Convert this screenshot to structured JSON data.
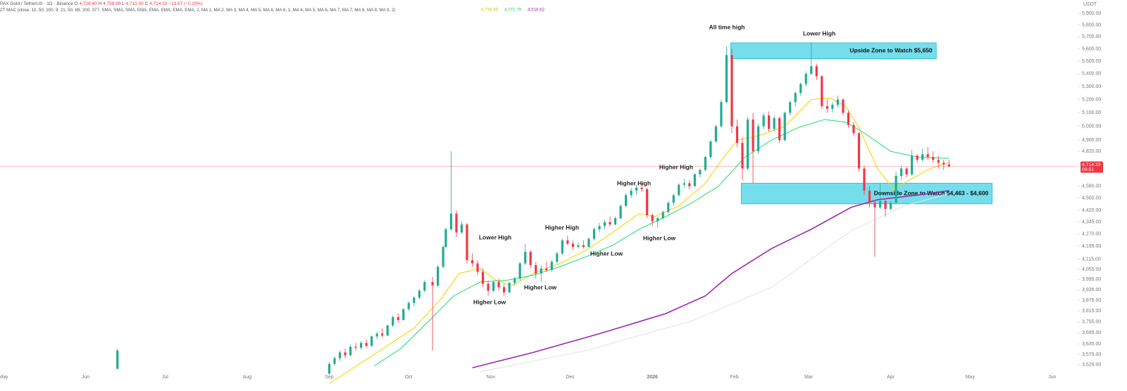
{
  "chart_data": {
    "type": "candlestick",
    "header": {
      "symbol": "PAX Gold / TetherUS · 1D · Binance",
      "ohlc": [
        {
          "key": "O",
          "value": "4,728.60"
        },
        {
          "key": "H",
          "value": "4,758.99"
        },
        {
          "key": "L",
          "value": "4,710.00"
        },
        {
          "key": "C",
          "value": "4,714.33"
        }
      ],
      "change": "−13.67 (−0.29%)",
      "indicator": "ZT MAC (close, 10, 50, 200, 9, 21, 50, 89, 200, 377, SMA, SMA, SMA, EMA, EMA, EMA, EMA, EMA, 2, MA 1, MA 2, MA 3, MA 4, MA 5, MA 6, MA 6, 1, MA 4, MA 5, MA 6, MA 7, MA 7, MA 8, MA 8, MA 9, 2)",
      "indicator_values": [
        {
          "value": "4,739.99",
          "color": "#e0c200"
        },
        {
          "value": "4,771.70",
          "color": "#22c55e"
        },
        {
          "value": "4,518.62",
          "color": "#9c27b0"
        }
      ]
    },
    "currency": "USDT",
    "log_scale": true,
    "up_color": "#22ab94",
    "down_color": "#f23645",
    "xlim": [
      -1.33,
      405.6
    ],
    "xticks": [
      {
        "value": 0,
        "label": "May"
      },
      {
        "value": 31,
        "label": "Jun"
      },
      {
        "value": 61,
        "label": "Jul"
      },
      {
        "value": 92,
        "label": "Aug"
      },
      {
        "value": 123,
        "label": "Sep"
      },
      {
        "value": 153,
        "label": "Oct"
      },
      {
        "value": 184,
        "label": "Nov"
      },
      {
        "value": 214,
        "label": "Dec"
      },
      {
        "value": 245,
        "label": "2026"
      },
      {
        "value": 276,
        "label": "Feb"
      },
      {
        "value": 304,
        "label": "Mar"
      },
      {
        "value": 335,
        "label": "Apr"
      },
      {
        "value": 365,
        "label": "May"
      },
      {
        "value": 396,
        "label": "Jun"
      }
    ],
    "ylim": [
      3492,
      5930
    ],
    "yticks": [
      {
        "value": 5900,
        "label": "5,900.00"
      },
      {
        "value": 5800,
        "label": "5,800.00"
      },
      {
        "value": 5700,
        "label": "5,700.00"
      },
      {
        "value": 5600,
        "label": "5,600.00"
      },
      {
        "value": 5500,
        "label": "5,500.00"
      },
      {
        "value": 5400,
        "label": "5,400.00"
      },
      {
        "value": 5300,
        "label": "5,300.00"
      },
      {
        "value": 5200,
        "label": "5,200.00"
      },
      {
        "value": 5100,
        "label": "5,100.00"
      },
      {
        "value": 5000,
        "label": "5,000.00"
      },
      {
        "value": 4900,
        "label": "4,900.00"
      },
      {
        "value": 4820,
        "label": "4,820.00"
      },
      {
        "value": 4580,
        "label": "4,580.00"
      },
      {
        "value": 4500,
        "label": "4,500.00"
      },
      {
        "value": 4420,
        "label": "4,420.00"
      },
      {
        "value": 4345,
        "label": "4,345.00"
      },
      {
        "value": 4270,
        "label": "4,270.00"
      },
      {
        "value": 4195,
        "label": "4,195.00"
      },
      {
        "value": 4115,
        "label": "4,115.00"
      },
      {
        "value": 4055,
        "label": "4,055.00"
      },
      {
        "value": 3995,
        "label": "3,995.00"
      },
      {
        "value": 3935,
        "label": "3,935.00"
      },
      {
        "value": 3875,
        "label": "3,875.00"
      },
      {
        "value": 3815,
        "label": "3,815.00"
      },
      {
        "value": 3755,
        "label": "3,755.00"
      },
      {
        "value": 3695,
        "label": "3,695.00"
      },
      {
        "value": 3635,
        "label": "3,635.00"
      },
      {
        "value": 3579,
        "label": "3,579.00"
      },
      {
        "value": 3526,
        "label": "3,526.00"
      }
    ],
    "x": [
      43,
      123,
      125,
      127,
      129,
      131,
      133,
      135,
      137,
      139,
      141,
      143,
      145,
      147,
      149,
      151,
      153,
      155,
      157,
      159,
      162,
      164,
      166,
      167,
      169,
      171,
      173,
      175,
      177,
      179,
      181,
      183,
      185,
      187,
      189,
      191,
      193,
      195,
      197,
      199,
      201,
      203,
      205,
      207,
      209,
      211,
      213,
      215,
      217,
      219,
      221,
      223,
      225,
      227,
      229,
      231,
      233,
      235,
      237,
      239,
      241,
      243,
      245,
      247,
      249,
      251,
      253,
      255,
      257,
      259,
      261,
      263,
      265,
      267,
      269,
      271,
      273,
      275,
      277,
      279,
      281,
      283,
      285,
      287,
      289,
      291,
      293,
      295,
      297,
      299,
      301,
      303,
      305,
      307,
      309,
      311,
      313,
      315,
      317,
      319,
      321,
      323,
      325,
      327,
      329,
      331,
      333,
      335,
      337,
      339,
      341,
      343,
      345,
      347,
      349,
      351,
      353,
      355,
      357
    ],
    "open": [
      3505,
      3480,
      3530,
      3560,
      3590,
      3575,
      3620,
      3615,
      3640,
      3625,
      3675,
      3690,
      3680,
      3735,
      3780,
      3765,
      3825,
      3860,
      3890,
      3930,
      3980,
      3960,
      4070,
      4190,
      4300,
      4400,
      4280,
      4330,
      4110,
      4090,
      4040,
      3970,
      3930,
      3980,
      3950,
      3920,
      3975,
      4000,
      4090,
      4160,
      4080,
      4030,
      4060,
      4050,
      4100,
      4150,
      4230,
      4210,
      4190,
      4200,
      4190,
      4240,
      4300,
      4320,
      4345,
      4330,
      4370,
      4450,
      4520,
      4550,
      4570,
      4560,
      4390,
      4350,
      4370,
      4410,
      4470,
      4520,
      4590,
      4600,
      4580,
      4660,
      4690,
      4780,
      4890,
      5000,
      5180,
      5550,
      5000,
      4880,
      4700,
      5050,
      4820,
      5000,
      5080,
      4980,
      5060,
      4900,
      5100,
      5180,
      5250,
      5320,
      5400,
      5460,
      5380,
      5150,
      5130,
      5160,
      5200,
      5100,
      5010,
      4950,
      4700,
      4550,
      4470,
      4440,
      4480,
      4430,
      4470,
      4650,
      4700,
      4660,
      4790,
      4760,
      4800,
      4780,
      4760,
      4740,
      4728.6
    ],
    "high": [
      3610,
      3540,
      3570,
      3600,
      3610,
      3630,
      3640,
      3650,
      3660,
      3680,
      3700,
      3720,
      3740,
      3790,
      3800,
      3830,
      3870,
      3900,
      3940,
      3990,
      4010,
      4080,
      4200,
      4310,
      4820,
      4420,
      4350,
      4340,
      4150,
      4110,
      4060,
      3990,
      3990,
      4000,
      3970,
      3980,
      4010,
      4100,
      4210,
      4170,
      4100,
      4080,
      4100,
      4110,
      4160,
      4240,
      4260,
      4230,
      4220,
      4230,
      4250,
      4310,
      4340,
      4360,
      4380,
      4380,
      4460,
      4530,
      4570,
      4590,
      4600,
      4570,
      4400,
      4380,
      4420,
      4480,
      4530,
      4600,
      4630,
      4620,
      4670,
      4700,
      4790,
      4900,
      5010,
      5200,
      5620,
      5600,
      5050,
      4920,
      5070,
      5100,
      5020,
      5100,
      5110,
      5080,
      5070,
      5110,
      5190,
      5260,
      5330,
      5420,
      5650,
      5480,
      5390,
      5200,
      5180,
      5230,
      5210,
      5120,
      5030,
      4960,
      4720,
      4580,
      4490,
      4600,
      4500,
      4480,
      4680,
      4720,
      4710,
      4830,
      4800,
      4840,
      4850,
      4820,
      4790,
      4760,
      4758.99
    ],
    "low": [
      3500,
      3475,
      3520,
      3545,
      3560,
      3570,
      3600,
      3605,
      3615,
      3620,
      3660,
      3670,
      3675,
      3725,
      3750,
      3760,
      3815,
      3840,
      3880,
      3920,
      3600,
      3950,
      4060,
      4180,
      4290,
      4250,
      4270,
      4090,
      4070,
      4020,
      3950,
      3900,
      3920,
      3930,
      3900,
      3915,
      3960,
      3990,
      4080,
      4060,
      4000,
      3980,
      4040,
      4040,
      4090,
      4140,
      4200,
      4170,
      4180,
      4180,
      4185,
      4230,
      4280,
      4300,
      4320,
      4325,
      4360,
      4440,
      4500,
      4520,
      4540,
      4370,
      4320,
      4310,
      4360,
      4400,
      4450,
      4510,
      4570,
      4560,
      4575,
      4640,
      4680,
      4770,
      4880,
      4990,
      5170,
      4950,
      4850,
      4620,
      4690,
      4600,
      4800,
      4980,
      4960,
      4960,
      4880,
      4890,
      5080,
      5150,
      5230,
      5300,
      5390,
      5350,
      5130,
      5100,
      5100,
      5140,
      5080,
      4990,
      4930,
      4680,
      4520,
      4440,
      4130,
      4430,
      4380,
      4420,
      4460,
      4620,
      4640,
      4650,
      4740,
      4750,
      4760,
      4740,
      4700,
      4690,
      4710
    ],
    "close": [
      3600,
      3530,
      3560,
      3590,
      3575,
      3620,
      3615,
      3640,
      3625,
      3675,
      3690,
      3680,
      3735,
      3780,
      3765,
      3825,
      3860,
      3890,
      3930,
      3980,
      3960,
      4070,
      4190,
      4300,
      4400,
      4280,
      4330,
      4110,
      4090,
      4040,
      3970,
      3930,
      3980,
      3950,
      3920,
      3975,
      4000,
      4090,
      4160,
      4080,
      4030,
      4060,
      4050,
      4100,
      4150,
      4230,
      4210,
      4190,
      4200,
      4190,
      4240,
      4300,
      4320,
      4345,
      4330,
      4370,
      4450,
      4520,
      4550,
      4570,
      4560,
      4390,
      4350,
      4370,
      4410,
      4470,
      4520,
      4590,
      4600,
      4580,
      4660,
      4690,
      4780,
      4890,
      5000,
      5180,
      5550,
      5000,
      4880,
      4700,
      5050,
      4820,
      5000,
      5080,
      4980,
      5060,
      4900,
      5100,
      5180,
      5250,
      5320,
      5400,
      5460,
      5380,
      5150,
      5130,
      5160,
      5200,
      5100,
      5010,
      4950,
      4700,
      4550,
      4470,
      4440,
      4480,
      4430,
      4470,
      4650,
      4700,
      4660,
      4790,
      4760,
      4800,
      4780,
      4760,
      4740,
      4728.6,
      4714.33
    ],
    "ma_lines": [
      {
        "color": "#f5d50a",
        "x": [
          123,
          140,
          155,
          165,
          172,
          180,
          186,
          192,
          200,
          210,
          220,
          230,
          240,
          246,
          255,
          265,
          272,
          277,
          285,
          295,
          305,
          312,
          318,
          323,
          330,
          336,
          342,
          350,
          357
        ],
        "values": [
          3430,
          3580,
          3720,
          3880,
          4030,
          4060,
          3990,
          3960,
          4030,
          4090,
          4170,
          4280,
          4400,
          4380,
          4450,
          4600,
          4780,
          4900,
          4930,
          5000,
          5200,
          5210,
          5150,
          4990,
          4700,
          4560,
          4620,
          4700,
          4740
        ]
      },
      {
        "color": "#2ee07a",
        "x": [
          140,
          150,
          160,
          170,
          180,
          190,
          200,
          210,
          220,
          230,
          240,
          250,
          260,
          270,
          280,
          290,
          300,
          310,
          318,
          325,
          335,
          345,
          357
        ],
        "values": [
          3520,
          3610,
          3750,
          3900,
          3980,
          3990,
          4020,
          4070,
          4130,
          4200,
          4300,
          4380,
          4470,
          4580,
          4780,
          4900,
          4990,
          5050,
          5030,
          4950,
          4820,
          4780,
          4770
        ]
      },
      {
        "color": "#9c27b0",
        "x": [
          177,
          200,
          225,
          250,
          265,
          275,
          290,
          305,
          320,
          330,
          345,
          357
        ],
        "values": [
          3510,
          3590,
          3690,
          3800,
          3900,
          4030,
          4180,
          4300,
          4440,
          4490,
          4520,
          4550
        ]
      },
      {
        "color": "#e4e4e4",
        "x": [
          180,
          220,
          260,
          290,
          320,
          340,
          357
        ],
        "values": [
          3490,
          3600,
          3760,
          3950,
          4290,
          4450,
          4530
        ]
      }
    ],
    "last_price": {
      "value": 4714.33,
      "label": "4,714.33",
      "countdown": "09:51"
    },
    "zones": [
      {
        "label": "Upside Zone to Watch $5,650",
        "range": [
          5520,
          5650
        ],
        "color": "#5dd8ea"
      },
      {
        "label": "Downside Zone to Watch $4,463 - $4,600",
        "range": [
          4463,
          4600
        ],
        "color": "#5dd8ea"
      }
    ],
    "annotations": [
      "All time high",
      "Lower High",
      "Higher High",
      "Higher High",
      "Higher High",
      "Lower High",
      "Higher Low",
      "Higher Low",
      "Higher Low",
      "Higher Low"
    ]
  }
}
